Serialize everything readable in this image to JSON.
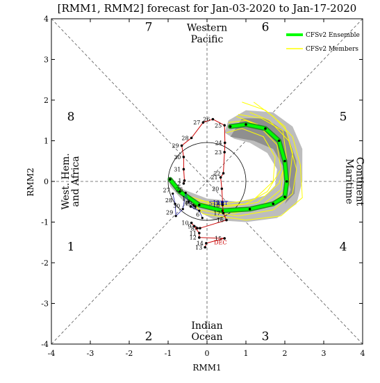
{
  "chart_data": {
    "type": "line",
    "title": "[RMM1, RMM2] forecast for Jan-03-2020 to Jan-17-2020",
    "xlabel": "RMM1",
    "ylabel": "RMM2",
    "xlim": [
      -4,
      4
    ],
    "ylim": [
      -4,
      4
    ],
    "xticks": [
      "-4",
      "-3",
      "-2",
      "-1",
      "0",
      "1",
      "2",
      "3",
      "4"
    ],
    "yticks": [
      "-4",
      "-3",
      "-2",
      "-1",
      "0",
      "1",
      "2",
      "3",
      "4"
    ],
    "grid": false,
    "legend_position": "top-right",
    "phases": [
      {
        "label": "1",
        "x": -3.5,
        "y": -1.6
      },
      {
        "label": "2",
        "x": -1.5,
        "y": -3.8
      },
      {
        "label": "3",
        "x": 1.5,
        "y": -3.8
      },
      {
        "label": "4",
        "x": 3.5,
        "y": -1.6
      },
      {
        "label": "5",
        "x": 3.5,
        "y": 1.6
      },
      {
        "label": "6",
        "x": 1.5,
        "y": 3.8
      },
      {
        "label": "7",
        "x": -1.5,
        "y": 3.8
      },
      {
        "label": "8",
        "x": -3.5,
        "y": 1.6
      }
    ],
    "regions": {
      "top": [
        "Western",
        "Pacific"
      ],
      "bottom": [
        "Indian",
        "Ocean"
      ],
      "left": [
        "West. Hem.",
        "and Africa"
      ],
      "right": [
        "Maritime",
        "Continent"
      ]
    },
    "legend": [
      {
        "name": "CFSv2 Ensemble",
        "color": "#00ff00"
      },
      {
        "name": "CFSv2 Members",
        "color": "#ffff00"
      }
    ],
    "observed": {
      "color": "#cc0000",
      "month_labels": [
        {
          "text": "DEC",
          "x": 0.18,
          "y": -1.55,
          "color": "#cc0000"
        },
        {
          "text": "START",
          "x": 0.05,
          "y": -0.58,
          "color": "#0000cc"
        }
      ],
      "points": [
        {
          "day": "13",
          "x": -0.05,
          "y": -1.62
        },
        {
          "day": "14",
          "x": -0.02,
          "y": -1.52
        },
        {
          "day": "15",
          "x": 0.45,
          "y": -1.4
        },
        {
          "day": "12",
          "x": -0.2,
          "y": -1.38
        },
        {
          "day": "11",
          "x": -0.2,
          "y": -1.27
        },
        {
          "day": "10",
          "x": -0.4,
          "y": -1.02
        },
        {
          "day": "9",
          "x": -0.33,
          "y": -1.1
        },
        {
          "day": "8",
          "x": -0.25,
          "y": -1.15
        },
        {
          "day": "7",
          "x": -0.18,
          "y": -1.15
        },
        {
          "day": "16",
          "x": 0.5,
          "y": -0.95
        },
        {
          "day": "17",
          "x": 0.42,
          "y": -0.78
        },
        {
          "day": "18",
          "x": 0.4,
          "y": -0.58
        },
        {
          "day": "19",
          "x": 0.4,
          "y": -0.52
        },
        {
          "day": "20",
          "x": 0.38,
          "y": -0.18
        },
        {
          "day": "21",
          "x": 0.35,
          "y": 0.1
        },
        {
          "day": "22",
          "x": 0.42,
          "y": 0.2
        },
        {
          "day": "23",
          "x": 0.45,
          "y": 0.72
        },
        {
          "day": "24",
          "x": 0.46,
          "y": 0.95
        },
        {
          "day": "25",
          "x": 0.45,
          "y": 1.38
        },
        {
          "day": "26",
          "x": 0.15,
          "y": 1.53
        },
        {
          "day": "27",
          "x": -0.1,
          "y": 1.45
        },
        {
          "day": "28",
          "x": -0.4,
          "y": 1.07
        },
        {
          "day": "29",
          "x": -0.65,
          "y": 0.88
        },
        {
          "day": "30",
          "x": -0.6,
          "y": 0.6
        },
        {
          "day": "31",
          "x": -0.6,
          "y": 0.3
        },
        {
          "day": "1",
          "x": -0.58,
          "y": 0.02
        },
        {
          "day": "2",
          "x": -0.6,
          "y": -0.05
        }
      ],
      "prior_points": [
        {
          "day": "27",
          "x": -0.88,
          "y": -0.3
        },
        {
          "day": "28",
          "x": -0.82,
          "y": -0.55
        },
        {
          "day": "29",
          "x": -0.8,
          "y": -0.85
        },
        {
          "day": "30",
          "x": -0.62,
          "y": -0.68
        },
        {
          "day": "26",
          "x": -0.55,
          "y": -0.28
        },
        {
          "day": "1",
          "x": -0.48,
          "y": -0.5
        },
        {
          "day": "2",
          "x": -0.35,
          "y": -0.58
        },
        {
          "day": "3",
          "x": -0.3,
          "y": -0.62
        },
        {
          "day": "4",
          "x": -0.42,
          "y": -0.62
        },
        {
          "day": "5",
          "x": -0.2,
          "y": -0.72
        },
        {
          "day": "6",
          "x": -0.12,
          "y": -0.9
        }
      ]
    },
    "ensemble_mean": [
      {
        "x": -0.95,
        "y": 0.05
      },
      {
        "x": -0.7,
        "y": -0.25
      },
      {
        "x": -0.2,
        "y": -0.58
      },
      {
        "x": 0.4,
        "y": -0.72
      },
      {
        "x": 1.1,
        "y": -0.68
      },
      {
        "x": 1.7,
        "y": -0.55
      },
      {
        "x": 2.0,
        "y": -0.38
      },
      {
        "x": 2.05,
        "y": 0.0
      },
      {
        "x": 2.0,
        "y": 0.5
      },
      {
        "x": 1.85,
        "y": 1.0
      },
      {
        "x": 1.5,
        "y": 1.3
      },
      {
        "x": 1.0,
        "y": 1.4
      },
      {
        "x": 0.6,
        "y": 1.35
      }
    ],
    "spread_polygon": [
      {
        "x": -1.0,
        "y": 0.12
      },
      {
        "x": -0.6,
        "y": -0.2
      },
      {
        "x": 0.0,
        "y": -0.42
      },
      {
        "x": 0.8,
        "y": -0.5
      },
      {
        "x": 1.5,
        "y": -0.35
      },
      {
        "x": 1.75,
        "y": -0.1
      },
      {
        "x": 1.8,
        "y": 0.3
      },
      {
        "x": 1.55,
        "y": 0.7
      },
      {
        "x": 1.1,
        "y": 0.95
      },
      {
        "x": 0.7,
        "y": 1.05
      },
      {
        "x": 0.45,
        "y": 1.2
      },
      {
        "x": 0.55,
        "y": 1.5
      },
      {
        "x": 1.0,
        "y": 1.75
      },
      {
        "x": 1.7,
        "y": 1.7
      },
      {
        "x": 2.2,
        "y": 1.35
      },
      {
        "x": 2.45,
        "y": 0.8
      },
      {
        "x": 2.45,
        "y": 0.0
      },
      {
        "x": 2.3,
        "y": -0.55
      },
      {
        "x": 1.8,
        "y": -0.9
      },
      {
        "x": 1.0,
        "y": -1.0
      },
      {
        "x": 0.2,
        "y": -0.95
      },
      {
        "x": -0.5,
        "y": -0.6
      },
      {
        "x": -0.95,
        "y": -0.12
      }
    ],
    "inner_spread_polygon": [
      {
        "x": 0.6,
        "y": 1.1
      },
      {
        "x": 1.2,
        "y": 1.0
      },
      {
        "x": 1.7,
        "y": 0.8
      },
      {
        "x": 2.0,
        "y": 0.3
      },
      {
        "x": 2.15,
        "y": -0.2
      },
      {
        "x": 2.0,
        "y": -0.55
      },
      {
        "x": 2.25,
        "y": -0.3
      },
      {
        "x": 2.3,
        "y": 0.5
      },
      {
        "x": 2.05,
        "y": 1.2
      },
      {
        "x": 1.5,
        "y": 1.55
      },
      {
        "x": 0.9,
        "y": 1.55
      }
    ],
    "members": [
      [
        {
          "x": -0.95,
          "y": 0.05
        },
        {
          "x": -0.3,
          "y": -0.55
        },
        {
          "x": 0.6,
          "y": -0.7
        },
        {
          "x": 1.4,
          "y": -0.6
        },
        {
          "x": 1.9,
          "y": -0.2
        },
        {
          "x": 2.0,
          "y": 0.5
        },
        {
          "x": 1.7,
          "y": 1.2
        },
        {
          "x": 1.0,
          "y": 1.5
        },
        {
          "x": 0.55,
          "y": 1.45
        }
      ],
      [
        {
          "x": -0.95,
          "y": 0.05
        },
        {
          "x": -0.2,
          "y": -0.7
        },
        {
          "x": 0.8,
          "y": -0.85
        },
        {
          "x": 1.7,
          "y": -0.7
        },
        {
          "x": 2.2,
          "y": -0.3
        },
        {
          "x": 2.3,
          "y": 0.3
        },
        {
          "x": 2.1,
          "y": 1.0
        },
        {
          "x": 1.6,
          "y": 1.5
        },
        {
          "x": 1.1,
          "y": 1.7
        }
      ],
      [
        {
          "x": -0.95,
          "y": 0.05
        },
        {
          "x": -0.4,
          "y": -0.45
        },
        {
          "x": 0.4,
          "y": -0.55
        },
        {
          "x": 1.2,
          "y": -0.45
        },
        {
          "x": 1.7,
          "y": 0.0
        },
        {
          "x": 1.75,
          "y": 0.6
        },
        {
          "x": 1.45,
          "y": 1.1
        },
        {
          "x": 0.9,
          "y": 1.3
        },
        {
          "x": 0.5,
          "y": 1.2
        }
      ],
      [
        {
          "x": -0.95,
          "y": 0.05
        },
        {
          "x": -0.1,
          "y": -0.8
        },
        {
          "x": 1.0,
          "y": -0.95
        },
        {
          "x": 1.9,
          "y": -0.85
        },
        {
          "x": 2.45,
          "y": -0.4
        },
        {
          "x": 2.4,
          "y": 0.4
        },
        {
          "x": 2.2,
          "y": 1.1
        },
        {
          "x": 1.7,
          "y": 1.6
        },
        {
          "x": 1.2,
          "y": 1.95
        }
      ],
      [
        {
          "x": -0.95,
          "y": 0.05
        },
        {
          "x": -0.5,
          "y": -0.35
        },
        {
          "x": 0.3,
          "y": -0.6
        },
        {
          "x": 1.0,
          "y": -0.55
        },
        {
          "x": 1.55,
          "y": -0.25
        },
        {
          "x": 1.9,
          "y": 0.3
        },
        {
          "x": 1.8,
          "y": 0.9
        },
        {
          "x": 1.3,
          "y": 1.4
        },
        {
          "x": 0.75,
          "y": 1.6
        }
      ],
      [
        {
          "x": -0.95,
          "y": 0.05
        },
        {
          "x": -0.25,
          "y": -0.62
        },
        {
          "x": 0.7,
          "y": -0.78
        },
        {
          "x": 1.6,
          "y": -0.62
        },
        {
          "x": 2.1,
          "y": -0.1
        },
        {
          "x": 2.2,
          "y": 0.7
        },
        {
          "x": 2.0,
          "y": 1.35
        },
        {
          "x": 1.5,
          "y": 1.75
        },
        {
          "x": 0.9,
          "y": 1.95
        }
      ],
      [
        {
          "x": -0.95,
          "y": 0.05
        },
        {
          "x": -0.35,
          "y": -0.5
        },
        {
          "x": 0.5,
          "y": -0.62
        },
        {
          "x": 1.3,
          "y": -0.52
        },
        {
          "x": 1.85,
          "y": -0.05
        },
        {
          "x": 2.05,
          "y": 0.55
        },
        {
          "x": 1.95,
          "y": 1.25
        },
        {
          "x": 1.4,
          "y": 1.55
        },
        {
          "x": 0.8,
          "y": 1.65
        }
      ]
    ]
  }
}
